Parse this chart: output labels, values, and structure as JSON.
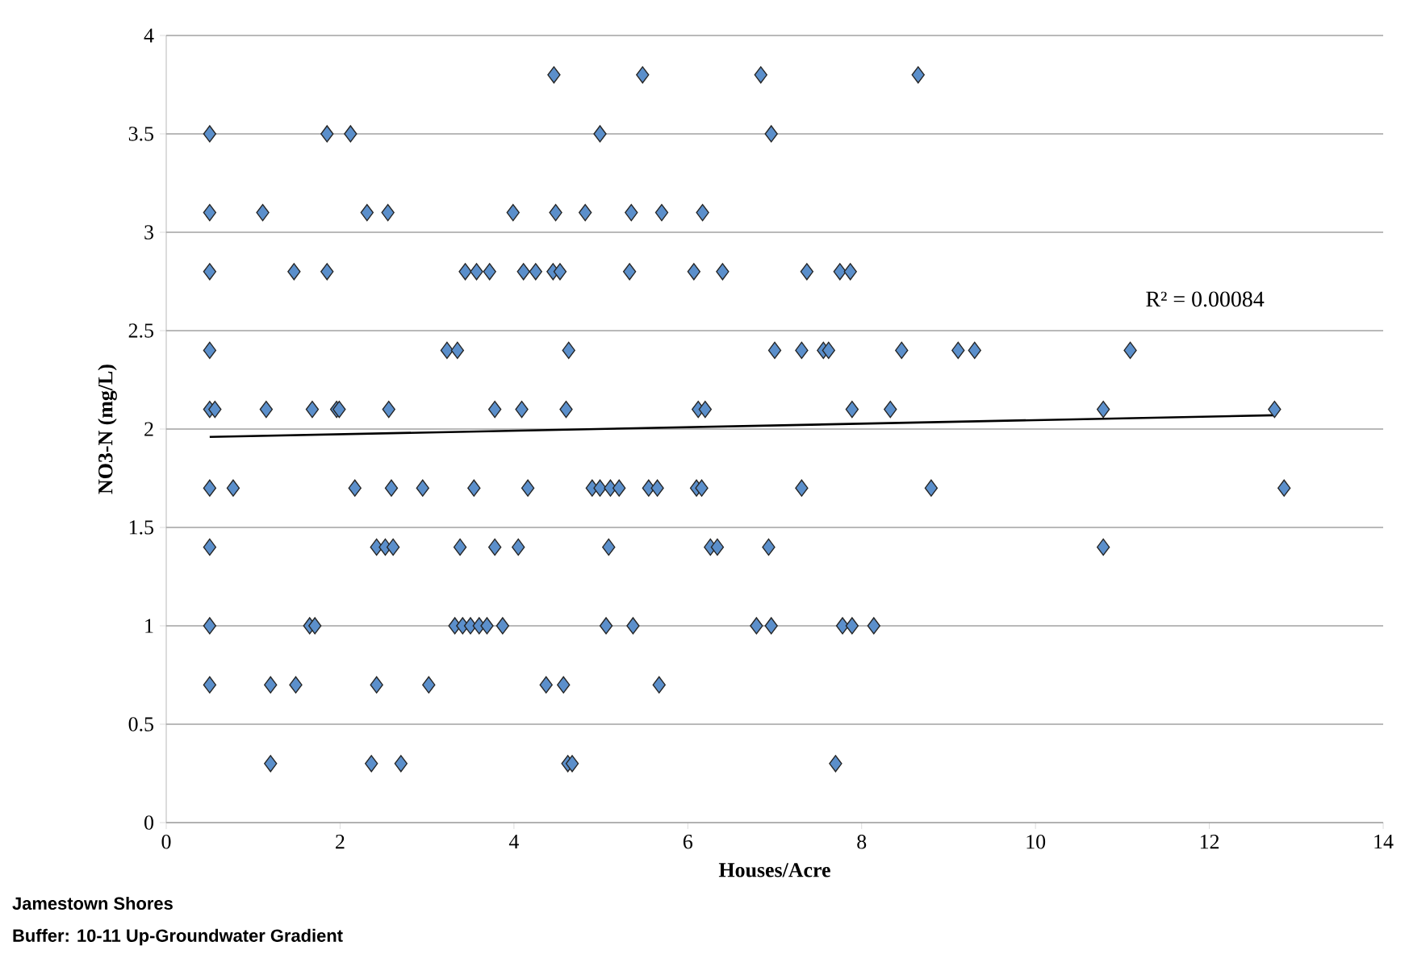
{
  "chart_data": {
    "type": "scatter",
    "xlabel": "Houses/Acre",
    "ylabel": "NO3-N (mg/L)",
    "annotations": [
      "R² = 0.00084",
      "Jamestown Shores",
      "Buffer: 10-11 Up-Groundwater Gradient"
    ],
    "xlim": [
      0,
      14
    ],
    "ylim": [
      0,
      4
    ],
    "xticks": [
      0,
      2,
      4,
      6,
      8,
      10,
      12,
      14
    ],
    "yticks": [
      0,
      0.5,
      1,
      1.5,
      2,
      2.5,
      3,
      3.5,
      4
    ],
    "grid": "y",
    "marker": "diamond",
    "series": [
      {
        "color": "#5b8fcb",
        "x": [
          4.46,
          5.48,
          6.84,
          8.65,
          0.5,
          1.85,
          2.12,
          4.99,
          6.96,
          0.5,
          1.11,
          2.31,
          2.55,
          3.99,
          4.48,
          4.82,
          5.35,
          5.7,
          6.17,
          0.5,
          1.47,
          1.85,
          3.44,
          3.57,
          3.72,
          4.11,
          4.25,
          4.45,
          4.53,
          5.33,
          6.07,
          6.4,
          7.37,
          7.75,
          7.87,
          0.5,
          3.23,
          3.35,
          4.63,
          7.0,
          7.31,
          7.56,
          7.62,
          8.46,
          9.11,
          9.3,
          11.09,
          0.5,
          0.56,
          1.15,
          1.68,
          1.96,
          1.99,
          2.56,
          3.78,
          4.09,
          4.6,
          6.12,
          6.2,
          7.89,
          8.33,
          10.78,
          12.75,
          0.5,
          0.77,
          2.17,
          2.59,
          2.95,
          3.54,
          4.16,
          4.9,
          4.99,
          5.11,
          5.21,
          5.55,
          5.65,
          6.1,
          6.16,
          7.31,
          8.8,
          12.86,
          0.5,
          2.42,
          2.52,
          2.61,
          3.38,
          3.78,
          4.05,
          5.09,
          6.26,
          6.34,
          6.93,
          10.78,
          0.5,
          1.65,
          1.71,
          3.32,
          3.41,
          3.5,
          3.6,
          3.69,
          3.87,
          5.06,
          5.37,
          6.79,
          6.96,
          7.78,
          7.89,
          8.14,
          0.5,
          1.2,
          1.49,
          2.42,
          3.02,
          4.37,
          4.57,
          5.67,
          1.2,
          2.36,
          2.7,
          4.62,
          4.67,
          7.7
        ],
        "values": [
          3.8,
          3.8,
          3.8,
          3.8,
          3.5,
          3.5,
          3.5,
          3.5,
          3.5,
          3.1,
          3.1,
          3.1,
          3.1,
          3.1,
          3.1,
          3.1,
          3.1,
          3.1,
          3.1,
          2.8,
          2.8,
          2.8,
          2.8,
          2.8,
          2.8,
          2.8,
          2.8,
          2.8,
          2.8,
          2.8,
          2.8,
          2.8,
          2.8,
          2.8,
          2.8,
          2.4,
          2.4,
          2.4,
          2.4,
          2.4,
          2.4,
          2.4,
          2.4,
          2.4,
          2.4,
          2.4,
          2.4,
          2.1,
          2.1,
          2.1,
          2.1,
          2.1,
          2.1,
          2.1,
          2.1,
          2.1,
          2.1,
          2.1,
          2.1,
          2.1,
          2.1,
          2.1,
          2.1,
          1.7,
          1.7,
          1.7,
          1.7,
          1.7,
          1.7,
          1.7,
          1.7,
          1.7,
          1.7,
          1.7,
          1.7,
          1.7,
          1.7,
          1.7,
          1.7,
          1.7,
          1.7,
          1.4,
          1.4,
          1.4,
          1.4,
          1.4,
          1.4,
          1.4,
          1.4,
          1.4,
          1.4,
          1.4,
          1.4,
          1,
          1,
          1,
          1,
          1,
          1,
          1,
          1,
          1,
          1,
          1,
          1,
          1,
          1,
          1,
          1,
          0.7,
          0.7,
          0.7,
          0.7,
          0.7,
          0.7,
          0.7,
          0.7,
          0.3,
          0.3,
          0.3,
          0.3,
          0.3,
          0.3
        ]
      },
      {
        "type": "line",
        "color": "#000000",
        "marker": "none",
        "x": [
          0.5,
          12.75
        ],
        "values": [
          1.96,
          2.07
        ]
      }
    ]
  }
}
